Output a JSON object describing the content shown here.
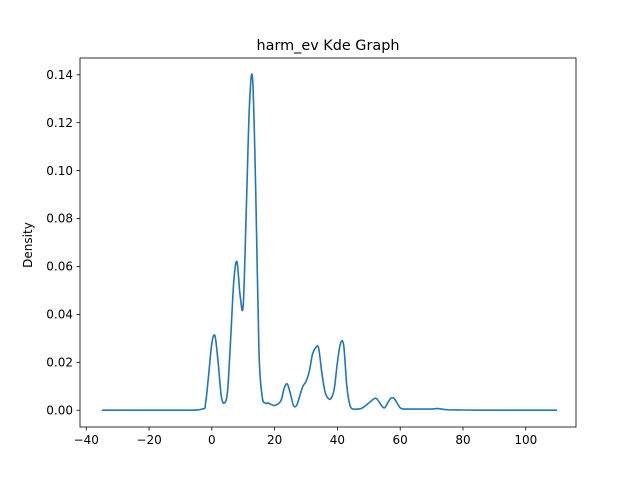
{
  "chart_data": {
    "type": "line",
    "title": "harm_ev Kde Graph",
    "xlabel": "",
    "ylabel": "Density",
    "xlim": [
      -42,
      116
    ],
    "ylim": [
      -0.007,
      0.147
    ],
    "grid": false,
    "x_ticks": [
      -40,
      -20,
      0,
      20,
      40,
      60,
      80,
      100
    ],
    "x_tick_labels": [
      "−40",
      "−20",
      "0",
      "20",
      "40",
      "60",
      "80",
      "100"
    ],
    "y_ticks": [
      0.0,
      0.02,
      0.04,
      0.06,
      0.08,
      0.1,
      0.12,
      0.14
    ],
    "y_tick_labels": [
      "0.00",
      "0.02",
      "0.04",
      "0.06",
      "0.08",
      "0.10",
      "0.12",
      "0.14"
    ],
    "series": [
      {
        "color": "#1f77b4",
        "x": [
          -35,
          -10,
          -3,
          -2,
          -1,
          0,
          1,
          2,
          3,
          4,
          5,
          6,
          7,
          8,
          9,
          10,
          11,
          12,
          13,
          14,
          15,
          16,
          17,
          18,
          20,
          22,
          23,
          24,
          25,
          26,
          27,
          28,
          29,
          30,
          31,
          32,
          33,
          34,
          35,
          36,
          37,
          38,
          39,
          40,
          41,
          42,
          43,
          44,
          45,
          46,
          47,
          48,
          50,
          52,
          53,
          54,
          55,
          56,
          57,
          58,
          59,
          60,
          61,
          62,
          65,
          70,
          72,
          75,
          80,
          90,
          100,
          110
        ],
        "y": [
          0,
          0,
          0.0005,
          0.003,
          0.015,
          0.028,
          0.031,
          0.02,
          0.006,
          0.003,
          0.008,
          0.03,
          0.054,
          0.062,
          0.048,
          0.044,
          0.085,
          0.128,
          0.138,
          0.09,
          0.025,
          0.006,
          0.003,
          0.003,
          0.002,
          0.004,
          0.009,
          0.011,
          0.007,
          0.002,
          0.002,
          0.006,
          0.01,
          0.012,
          0.016,
          0.023,
          0.026,
          0.026,
          0.016,
          0.008,
          0.005,
          0.005,
          0.009,
          0.02,
          0.028,
          0.027,
          0.01,
          0.002,
          0.0005,
          0.0005,
          0.0005,
          0.001,
          0.003,
          0.005,
          0.004,
          0.002,
          0.001,
          0.003,
          0.005,
          0.005,
          0.003,
          0.001,
          0.0005,
          0.0005,
          0.0005,
          0.0005,
          0.0007,
          0.0002,
          0.0001,
          0,
          0,
          0
        ]
      }
    ]
  }
}
